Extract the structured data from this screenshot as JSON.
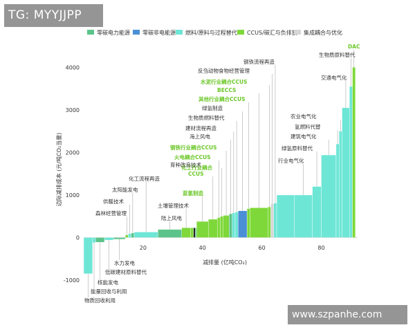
{
  "watermark_top": "TG: MYYJJPP",
  "watermark_bottom": "www.szpanhe.com",
  "colors": {
    "zero_power": "#5cc48a",
    "zero_nonpower": "#4a8fd6",
    "fuel_substitution": "#6ee6d6",
    "ccus": "#7fd83a",
    "integration": "#d6d6d6",
    "label_default": "#333333",
    "label_green": "#6cc82a"
  },
  "chart_data": {
    "type": "bar",
    "subtype": "marginal abatement cost curve",
    "xlabel": "减排量 (亿吨CO₂)",
    "ylabel": "边际减排成本 (元/吨CO₂当量)",
    "xlim": [
      0,
      92
    ],
    "ylim": [
      -1000,
      4200
    ],
    "xticks": [
      20,
      40,
      60,
      80
    ],
    "yticks": [
      -1000,
      0,
      1000,
      2000,
      3000,
      4000
    ],
    "legend_position": "top",
    "legend": [
      {
        "name": "零碳电力能源",
        "category": "zero_power"
      },
      {
        "name": "零碳非电能源",
        "category": "zero_nonpower"
      },
      {
        "name": "燃料/原料与过程替代",
        "category": "fuel_substitution"
      },
      {
        "name": "CCUS/碳汇与负排放",
        "category": "ccus"
      },
      {
        "name": "集成耦合与优化",
        "category": "integration"
      }
    ],
    "bars": [
      {
        "label": "物质回收利用",
        "x0": 0,
        "x1": 3,
        "value": -850,
        "category": "fuel_substitution"
      },
      {
        "label": "能量回收与利用",
        "x0": 3,
        "x1": 4,
        "value": -120,
        "category": "fuel_substitution"
      },
      {
        "label": "核能发电",
        "x0": 4,
        "x1": 7,
        "value": -110,
        "category": "zero_power"
      },
      {
        "label": "低碳建材原料替代",
        "x0": 7,
        "x1": 10,
        "value": -60,
        "category": "fuel_substitution"
      },
      {
        "label": "水力发电",
        "x0": 10,
        "x1": 14,
        "value": -40,
        "category": "zero_power"
      },
      {
        "label": "森林经营管理",
        "x0": 14,
        "x1": 15,
        "value": 60,
        "category": "ccus"
      },
      {
        "label": "供暖技术",
        "x0": 15,
        "x1": 16,
        "value": 90,
        "category": "fuel_substitution"
      },
      {
        "label": "太阳能发电",
        "x0": 16,
        "x1": 17,
        "value": 110,
        "category": "zero_power"
      },
      {
        "label": "化工流程再造",
        "x0": 17,
        "x1": 25,
        "value": 130,
        "category": "fuel_substitution"
      },
      {
        "label": "陆上风电",
        "x0": 25,
        "x1": 33,
        "value": 190,
        "category": "zero_power"
      },
      {
        "label": "土壤管理技术",
        "x0": 33,
        "x1": 36,
        "value": 230,
        "category": "ccus"
      },
      {
        "label": "",
        "x0": 36,
        "x1": 37,
        "value": 230,
        "category": "ccus"
      },
      {
        "label": "",
        "x0": 37,
        "x1": 37.6,
        "value": 230,
        "category": "dark"
      },
      {
        "label": "",
        "x0": 37.6,
        "x1": 38,
        "value": 230,
        "category": "zero_power"
      },
      {
        "label": "蓝氢制造",
        "x0": 38,
        "x1": 42,
        "value": 380,
        "category": "ccus"
      },
      {
        "label": "化工行业耦合CCUS",
        "x0": 42,
        "x1": 45,
        "value": 430,
        "category": "ccus"
      },
      {
        "label": "火电耦合CCUS",
        "x0": 45,
        "x1": 46,
        "value": 470,
        "category": "ccus"
      },
      {
        "label": "育种改良技术",
        "x0": 46,
        "x1": 47,
        "value": 500,
        "category": "ccus"
      },
      {
        "label": "钢铁行业耦合CCUS",
        "x0": 47,
        "x1": 49,
        "value": 520,
        "category": "ccus"
      },
      {
        "label": "海上风电",
        "x0": 49,
        "x1": 50,
        "value": 560,
        "category": "zero_power"
      },
      {
        "label": "建材流程再造",
        "x0": 50,
        "x1": 51,
        "value": 580,
        "category": "fuel_substitution"
      },
      {
        "label": "生物质燃料替代",
        "x0": 51,
        "x1": 52,
        "value": 600,
        "category": "fuel_substitution"
      },
      {
        "label": "绿氢制造",
        "x0": 52,
        "x1": 55,
        "value": 630,
        "category": "zero_nonpower"
      },
      {
        "label": "其他行业耦合CCUS",
        "x0": 55,
        "x1": 56,
        "value": 680,
        "category": "ccus"
      },
      {
        "label": "BECCS",
        "x0": 56,
        "x1": 62,
        "value": 700,
        "category": "ccus"
      },
      {
        "label": "水泥行业耦合CCUS",
        "x0": 62,
        "x1": 63,
        "value": 720,
        "category": "ccus"
      },
      {
        "label": "反刍动物食物经营管理",
        "x0": 63,
        "x1": 64,
        "value": 800,
        "category": "integration"
      },
      {
        "label": "钢铁流程再造",
        "x0": 64,
        "x1": 65,
        "value": 810,
        "category": "fuel_substitution"
      },
      {
        "label": "",
        "x0": 65,
        "x1": 71,
        "value": 1000,
        "category": "fuel_substitution"
      },
      {
        "label": "行业电气化",
        "x0": 71,
        "x1": 77,
        "value": 1000,
        "category": "fuel_substitution"
      },
      {
        "label": "绿氢原料替代",
        "x0": 77,
        "x1": 80,
        "value": 1200,
        "category": "fuel_substitution"
      },
      {
        "label": "建筑电气化",
        "x0": 80,
        "x1": 85,
        "value": 1940,
        "category": "fuel_substitution"
      },
      {
        "label": "氢燃料代替",
        "x0": 85,
        "x1": 86,
        "value": 2200,
        "category": "fuel_substitution"
      },
      {
        "label": "农业电气化",
        "x0": 86,
        "x1": 87,
        "value": 2500,
        "category": "fuel_substitution"
      },
      {
        "label": "交通电气化",
        "x0": 87,
        "x1": 89.5,
        "value": 3050,
        "category": "fuel_substitution"
      },
      {
        "label": "生物质原料替代",
        "x0": 89.5,
        "x1": 90.5,
        "value": 3550,
        "category": "fuel_substitution"
      },
      {
        "label": "DAC",
        "x0": 90.5,
        "x1": 91.5,
        "value": 4000,
        "category": "ccus"
      }
    ]
  }
}
